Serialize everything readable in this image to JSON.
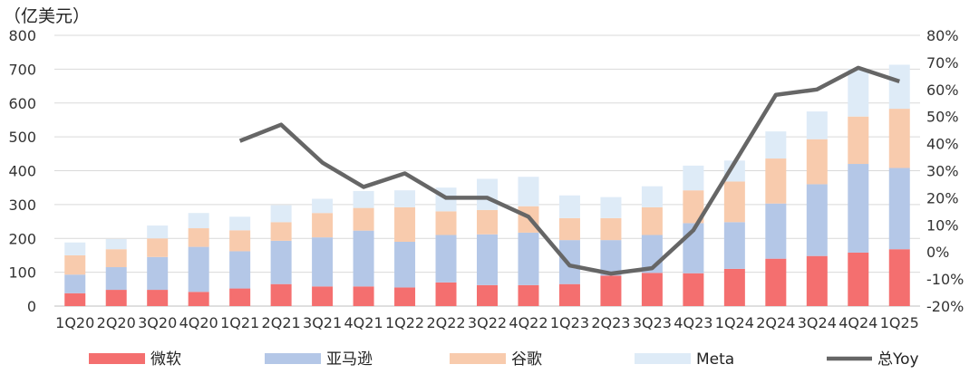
{
  "chart_data": {
    "type": "bar",
    "stacked": true,
    "unit_label": "（亿美元）",
    "categories": [
      "1Q20",
      "2Q20",
      "3Q20",
      "4Q20",
      "1Q21",
      "2Q21",
      "3Q21",
      "4Q21",
      "1Q22",
      "2Q22",
      "3Q22",
      "4Q22",
      "1Q23",
      "2Q23",
      "3Q23",
      "4Q23",
      "1Q24",
      "2Q24",
      "3Q24",
      "4Q24",
      "1Q25"
    ],
    "series": [
      {
        "name": "微软",
        "color": "#f46f6f",
        "values": [
          38,
          48,
          48,
          42,
          52,
          65,
          58,
          58,
          55,
          70,
          62,
          62,
          65,
          90,
          98,
          97,
          110,
          140,
          148,
          158,
          168
        ]
      },
      {
        "name": "亚马逊",
        "color": "#b4c7e7",
        "values": [
          55,
          67,
          97,
          133,
          110,
          128,
          145,
          165,
          135,
          140,
          150,
          155,
          130,
          105,
          112,
          148,
          138,
          163,
          212,
          262,
          240
        ]
      },
      {
        "name": "谷歌",
        "color": "#f8cbad",
        "values": [
          57,
          53,
          55,
          55,
          62,
          55,
          72,
          67,
          102,
          70,
          72,
          78,
          65,
          65,
          82,
          97,
          120,
          133,
          133,
          140,
          175
        ]
      },
      {
        "name": "Meta",
        "color": "#deebf7",
        "values": [
          38,
          30,
          38,
          45,
          40,
          50,
          42,
          50,
          50,
          70,
          92,
          87,
          67,
          62,
          62,
          73,
          62,
          80,
          82,
          140,
          130
        ]
      }
    ],
    "line_series": {
      "name": "总Yoy",
      "color": "#666666",
      "x_start": "1Q21",
      "values": [
        41,
        47,
        33,
        24,
        29,
        20,
        20,
        13,
        -5,
        -8,
        -6,
        8,
        33,
        58,
        60,
        68,
        63
      ]
    },
    "y_left": {
      "ticks": [
        0,
        100,
        200,
        300,
        400,
        500,
        600,
        700,
        800
      ],
      "ylim": [
        0,
        800
      ]
    },
    "y_right": {
      "ticks": [
        "-20%",
        "-10%",
        "0%",
        "10%",
        "20%",
        "30%",
        "40%",
        "50%",
        "60%",
        "70%",
        "80%"
      ],
      "ylim": [
        -20,
        80
      ]
    },
    "grid": true,
    "legend_position": "bottom"
  }
}
